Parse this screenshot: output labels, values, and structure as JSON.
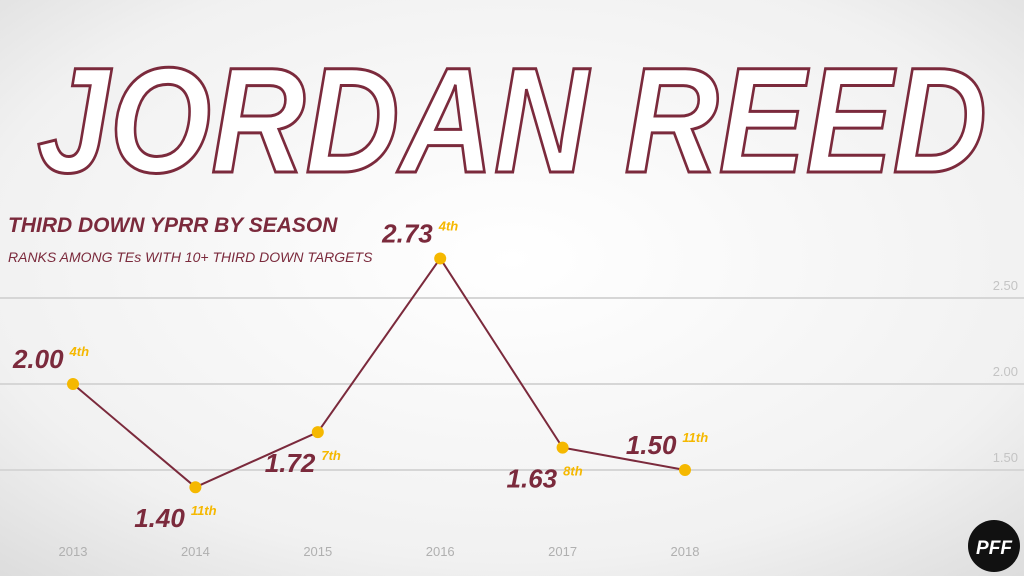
{
  "header": {
    "title": "JORDAN REED",
    "logo": "PFF"
  },
  "chart_data": {
    "type": "line",
    "title": "THIRD DOWN YPRR BY SEASON",
    "subtitle": "RANKS AMONG TEs WITH 10+ THIRD DOWN TARGETS",
    "categories": [
      "2013",
      "2014",
      "2015",
      "2016",
      "2017",
      "2018"
    ],
    "series": [
      {
        "name": "YPRR",
        "color": "#7b2a3c",
        "marker_color": "#f5b800",
        "values": [
          2.0,
          1.4,
          1.72,
          2.73,
          1.63,
          1.5
        ],
        "value_labels": [
          "2.00",
          "1.40",
          "1.72",
          "2.73",
          "1.63",
          "1.50"
        ]
      }
    ],
    "annotations": [
      "4th",
      "11th",
      "7th",
      "4th",
      "8th",
      "11th"
    ],
    "ylim": [
      0.9,
      4.2
    ],
    "yticks": [
      {
        "value": 1.5,
        "label": "1.50"
      },
      {
        "value": 2.0,
        "label": "2.00"
      },
      {
        "value": 2.5,
        "label": "2.50"
      }
    ],
    "grid": true
  }
}
